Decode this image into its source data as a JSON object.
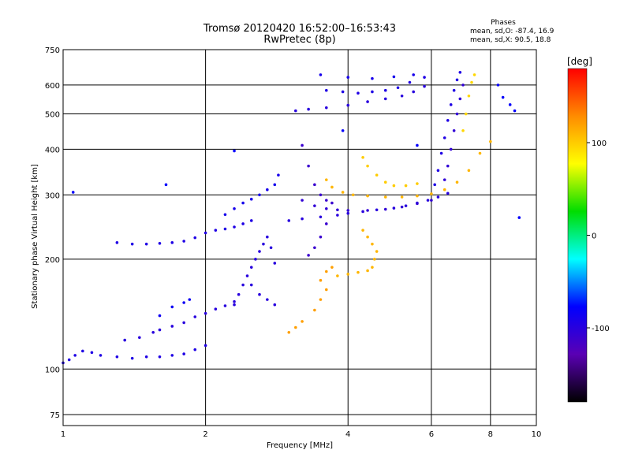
{
  "chart_data": {
    "type": "scatter",
    "title": "Tromsø 20120420 16:52:00–16:53:43",
    "subtitle": "RwPretec (8p)",
    "xlabel": "Frequency [MHz]",
    "ylabel": "Stationary phase Virtual Height [km]",
    "x_scale": "log",
    "y_scale": "log",
    "xlim": [
      1,
      10
    ],
    "ylim": [
      70,
      750
    ],
    "x_ticks": [
      1,
      2,
      4,
      6,
      8,
      10
    ],
    "x_tick_labels": [
      "1",
      "2",
      "4",
      "6",
      "8",
      "10"
    ],
    "y_ticks": [
      75,
      100,
      200,
      300,
      400,
      500,
      600,
      750
    ],
    "y_tick_labels": [
      "75",
      "100",
      "200",
      "300",
      "400",
      "500",
      "600",
      "750"
    ],
    "grid": true,
    "phases": {
      "heading": "Phases",
      "line_o": "mean, sd,O:  -87.4, 16.9",
      "line_x": "mean, sd,X:  90.5, 18.8"
    },
    "colorbar": {
      "label": "[deg]",
      "range": [
        -180,
        180
      ],
      "ticks": [
        100,
        0,
        -100
      ],
      "tick_labels": [
        "100",
        "0",
        "-100"
      ],
      "colors": [
        "#ff0000",
        "#ff8c00",
        "#ffff00",
        "#00dd00",
        "#00ffff",
        "#0000ff",
        "#5a00b4",
        "#000000"
      ]
    },
    "series": [
      {
        "phase": -95,
        "points": [
          [
            1.0,
            104
          ],
          [
            1.03,
            106
          ],
          [
            1.06,
            109
          ],
          [
            1.1,
            112
          ],
          [
            1.15,
            111
          ],
          [
            1.2,
            109
          ],
          [
            1.3,
            108
          ],
          [
            1.4,
            107
          ],
          [
            1.5,
            108
          ],
          [
            1.6,
            108
          ],
          [
            1.7,
            109
          ],
          [
            1.8,
            110
          ],
          [
            1.9,
            113
          ],
          [
            2.0,
            116
          ]
        ]
      },
      {
        "phase": -100,
        "points": [
          [
            1.35,
            120
          ],
          [
            1.45,
            122
          ],
          [
            1.55,
            126
          ],
          [
            1.6,
            128
          ],
          [
            1.7,
            131
          ],
          [
            1.8,
            134
          ],
          [
            1.9,
            139
          ],
          [
            2.0,
            142
          ],
          [
            2.1,
            146
          ],
          [
            2.2,
            149
          ],
          [
            2.3,
            153
          ]
        ]
      },
      {
        "phase": -85,
        "points": [
          [
            1.6,
            140
          ],
          [
            1.7,
            148
          ],
          [
            1.8,
            152
          ],
          [
            1.85,
            155
          ]
        ]
      },
      {
        "phase": -95,
        "points": [
          [
            1.3,
            222
          ],
          [
            1.4,
            220
          ],
          [
            1.5,
            220
          ],
          [
            1.6,
            221
          ],
          [
            1.7,
            222
          ],
          [
            1.8,
            224
          ],
          [
            1.9,
            229
          ],
          [
            2.0,
            236
          ],
          [
            2.1,
            240
          ],
          [
            2.2,
            242
          ],
          [
            2.3,
            245
          ],
          [
            2.4,
            250
          ],
          [
            2.5,
            255
          ]
        ]
      },
      {
        "phase": -90,
        "points": [
          [
            2.2,
            265
          ],
          [
            2.3,
            275
          ],
          [
            2.4,
            285
          ],
          [
            2.5,
            292
          ],
          [
            2.6,
            300
          ],
          [
            2.7,
            310
          ],
          [
            2.8,
            320
          ],
          [
            2.85,
            340
          ]
        ]
      },
      {
        "phase": -100,
        "points": [
          [
            2.3,
            150
          ],
          [
            2.35,
            160
          ],
          [
            2.4,
            170
          ],
          [
            2.45,
            180
          ],
          [
            2.5,
            190
          ],
          [
            2.55,
            200
          ],
          [
            2.6,
            210
          ],
          [
            2.65,
            220
          ],
          [
            2.7,
            230
          ],
          [
            2.75,
            215
          ],
          [
            2.8,
            195
          ],
          [
            2.5,
            170
          ],
          [
            2.6,
            160
          ],
          [
            2.7,
            155
          ],
          [
            2.8,
            150
          ]
        ]
      },
      {
        "phase": -100,
        "points": [
          [
            3.0,
            255
          ],
          [
            3.2,
            258
          ],
          [
            3.5,
            261
          ],
          [
            3.8,
            264
          ],
          [
            4.0,
            267
          ],
          [
            4.3,
            270
          ],
          [
            4.6,
            273
          ],
          [
            5.0,
            276
          ],
          [
            5.3,
            280
          ],
          [
            5.6,
            285
          ],
          [
            5.9,
            290
          ],
          [
            6.2,
            296
          ],
          [
            6.5,
            303
          ]
        ]
      },
      {
        "phase": -105,
        "points": [
          [
            3.2,
            290
          ],
          [
            3.4,
            280
          ],
          [
            3.6,
            275
          ],
          [
            3.8,
            273
          ],
          [
            4.0,
            272
          ],
          [
            4.4,
            272
          ],
          [
            4.8,
            274
          ],
          [
            5.2,
            278
          ],
          [
            5.6,
            284
          ],
          [
            6.0,
            290
          ]
        ]
      },
      {
        "phase": -110,
        "points": [
          [
            3.2,
            410
          ],
          [
            3.3,
            360
          ],
          [
            3.4,
            320
          ],
          [
            3.5,
            300
          ],
          [
            3.6,
            290
          ],
          [
            3.7,
            285
          ],
          [
            3.6,
            250
          ],
          [
            3.5,
            230
          ],
          [
            3.4,
            215
          ],
          [
            3.3,
            205
          ]
        ]
      },
      {
        "phase": -100,
        "points": [
          [
            3.1,
            510
          ],
          [
            3.3,
            515
          ],
          [
            3.6,
            520
          ],
          [
            4.0,
            528
          ],
          [
            4.4,
            540
          ],
          [
            4.8,
            550
          ],
          [
            5.2,
            560
          ],
          [
            5.5,
            575
          ],
          [
            5.8,
            595
          ]
        ]
      },
      {
        "phase": -95,
        "points": [
          [
            3.6,
            580
          ],
          [
            3.9,
            575
          ],
          [
            4.2,
            570
          ],
          [
            4.5,
            575
          ],
          [
            4.8,
            580
          ],
          [
            5.1,
            590
          ],
          [
            5.4,
            610
          ],
          [
            5.8,
            630
          ]
        ]
      },
      {
        "phase": -90,
        "points": [
          [
            3.5,
            640
          ],
          [
            4.0,
            630
          ],
          [
            4.5,
            625
          ],
          [
            5.0,
            632
          ],
          [
            5.5,
            640
          ]
        ]
      },
      {
        "phase": 110,
        "points": [
          [
            3.6,
            330
          ],
          [
            3.7,
            315
          ],
          [
            3.9,
            305
          ],
          [
            4.1,
            300
          ],
          [
            4.4,
            298
          ],
          [
            4.8,
            296
          ],
          [
            5.2,
            296
          ],
          [
            5.6,
            298
          ],
          [
            6.0,
            302
          ],
          [
            6.4,
            310
          ],
          [
            6.8,
            325
          ],
          [
            7.2,
            350
          ],
          [
            7.6,
            390
          ],
          [
            8.0,
            420
          ]
        ]
      },
      {
        "phase": 100,
        "points": [
          [
            4.3,
            380
          ],
          [
            4.4,
            360
          ],
          [
            4.6,
            340
          ],
          [
            4.8,
            325
          ],
          [
            5.0,
            318
          ],
          [
            5.3,
            318
          ],
          [
            5.6,
            322
          ]
        ]
      },
      {
        "phase": 120,
        "points": [
          [
            3.5,
            175
          ],
          [
            3.6,
            185
          ],
          [
            3.7,
            190
          ],
          [
            3.6,
            165
          ],
          [
            3.5,
            155
          ],
          [
            3.4,
            145
          ],
          [
            3.2,
            135
          ],
          [
            3.0,
            126
          ],
          [
            3.1,
            130
          ]
        ]
      },
      {
        "phase": 110,
        "points": [
          [
            3.8,
            180
          ],
          [
            4.0,
            182
          ],
          [
            4.2,
            184
          ],
          [
            4.4,
            186
          ],
          [
            4.5,
            190
          ],
          [
            4.55,
            200
          ],
          [
            4.6,
            210
          ],
          [
            4.5,
            220
          ],
          [
            4.4,
            230
          ],
          [
            4.3,
            240
          ]
        ]
      },
      {
        "phase": -95,
        "points": [
          [
            6.1,
            320
          ],
          [
            6.2,
            350
          ],
          [
            6.3,
            390
          ],
          [
            6.4,
            430
          ],
          [
            6.5,
            480
          ],
          [
            6.6,
            530
          ],
          [
            6.7,
            580
          ],
          [
            6.8,
            620
          ],
          [
            6.9,
            650
          ]
        ]
      },
      {
        "phase": -105,
        "points": [
          [
            6.4,
            330
          ],
          [
            6.5,
            360
          ],
          [
            6.6,
            400
          ],
          [
            6.7,
            450
          ],
          [
            6.8,
            500
          ],
          [
            6.9,
            550
          ],
          [
            7.0,
            600
          ]
        ]
      },
      {
        "phase": 95,
        "points": [
          [
            7.0,
            450
          ],
          [
            7.1,
            500
          ],
          [
            7.2,
            560
          ],
          [
            7.3,
            610
          ],
          [
            7.4,
            640
          ]
        ]
      },
      {
        "phase": -80,
        "points": [
          [
            1.05,
            305
          ],
          [
            1.65,
            320
          ],
          [
            2.3,
            396
          ],
          [
            3.9,
            450
          ],
          [
            5.6,
            410
          ],
          [
            8.3,
            600
          ],
          [
            8.5,
            555
          ],
          [
            8.8,
            530
          ],
          [
            9.0,
            510
          ],
          [
            9.2,
            260
          ]
        ]
      }
    ]
  }
}
